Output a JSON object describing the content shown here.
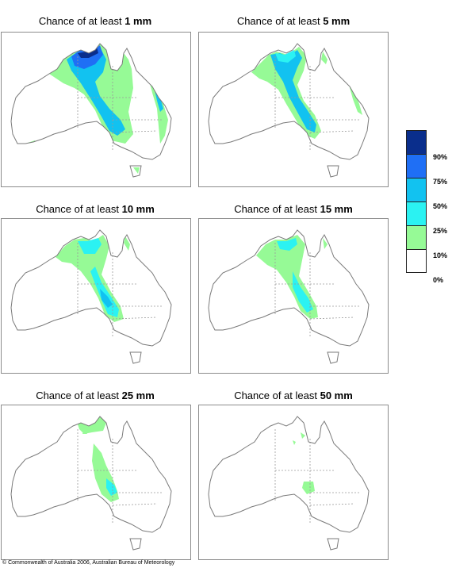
{
  "panels": [
    {
      "prefix": "Chance of at least ",
      "amount": "1 mm"
    },
    {
      "prefix": "Chance of at least ",
      "amount": "5 mm"
    },
    {
      "prefix": "Chance of at least ",
      "amount": "10 mm"
    },
    {
      "prefix": "Chance of at least ",
      "amount": "15 mm"
    },
    {
      "prefix": "Chance of at least ",
      "amount": "25 mm"
    },
    {
      "prefix": "Chance of at least ",
      "amount": "50 mm"
    }
  ],
  "legend": {
    "labels": [
      "90%",
      "75%",
      "50%",
      "25%",
      "10%",
      "0%"
    ],
    "colors": [
      "#0a2e8c",
      "#1f6ff5",
      "#12c2f0",
      "#2bf2f2",
      "#96fa96",
      "#ffffff"
    ]
  },
  "colors": {
    "outline": "#7a7a7a",
    "border_line": "#9a9a9a",
    "panel_frame": "#8c8c8c"
  },
  "copyright": "© Commonwealth of Australia 2006, Australian Bureau of Meteorology"
}
